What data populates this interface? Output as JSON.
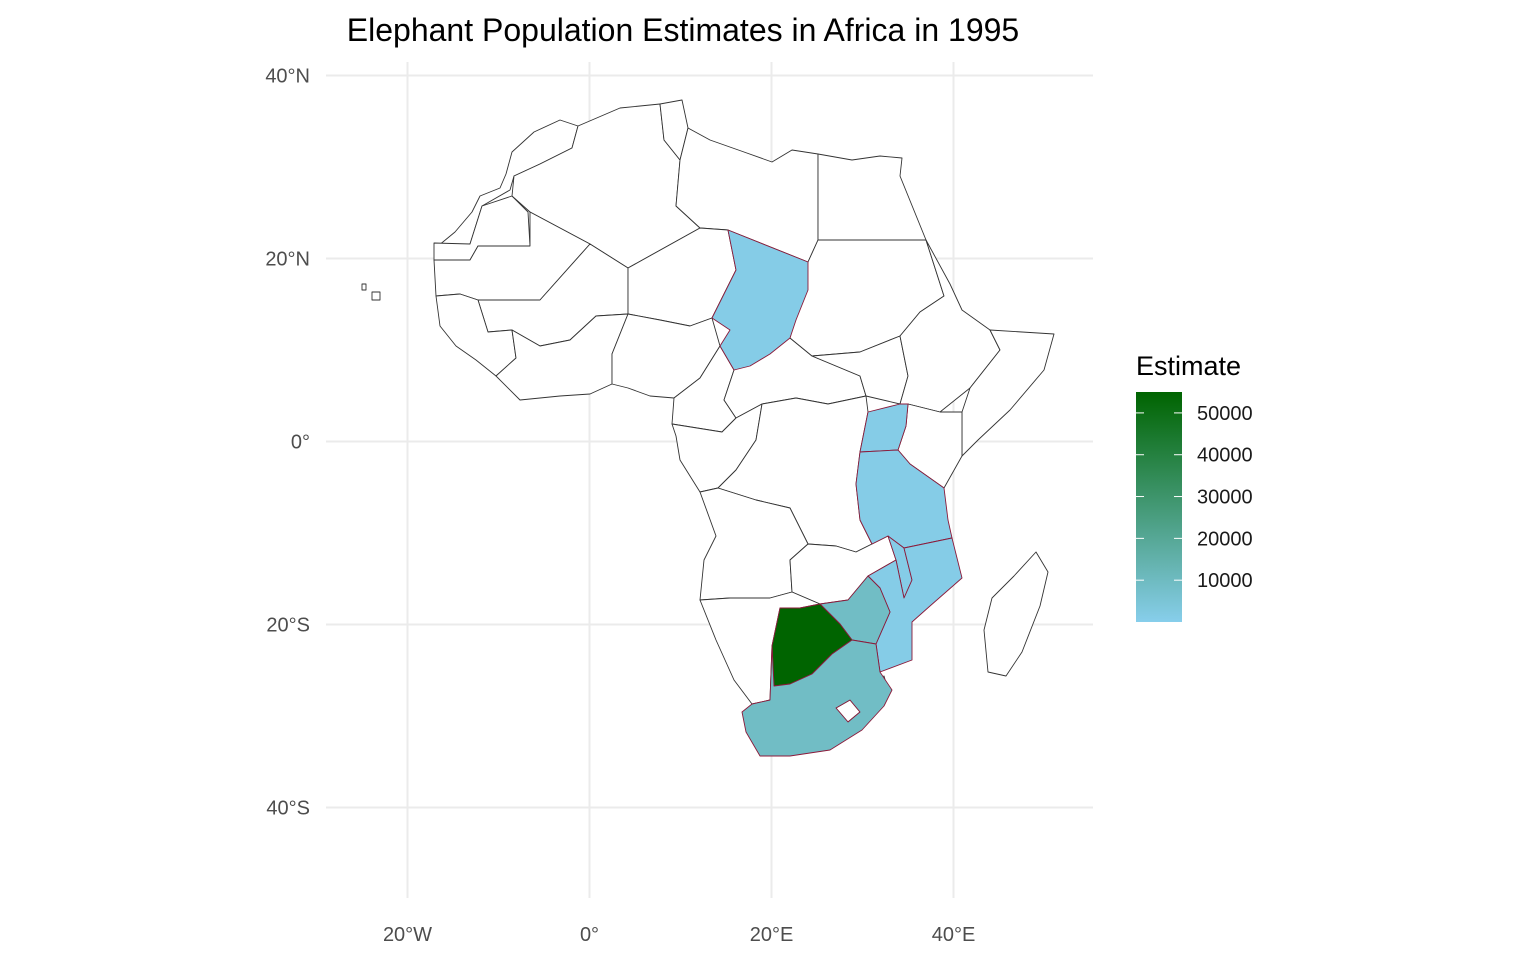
{
  "title": "Elephant Population Estimates in Africa in 1995",
  "map": {
    "region": "Africa",
    "projection": "equirectangular (lon/lat)",
    "lon_range": [
      -30,
      55
    ],
    "lat_range": [
      -48,
      42
    ],
    "grid": true,
    "default_fill": "#ffffff",
    "border_color": "#333333",
    "highlight_border_color": "#8b1a3a"
  },
  "axes": {
    "x_ticks": [
      {
        "value": -20,
        "label": "20°W"
      },
      {
        "value": 0,
        "label": "0°"
      },
      {
        "value": 20,
        "label": "20°E"
      },
      {
        "value": 40,
        "label": "40°E"
      }
    ],
    "y_ticks": [
      {
        "value": 40,
        "label": "40°N"
      },
      {
        "value": 20,
        "label": "20°N"
      },
      {
        "value": 0,
        "label": "0°"
      },
      {
        "value": -20,
        "label": "20°S"
      },
      {
        "value": -40,
        "label": "40°S"
      }
    ]
  },
  "legend": {
    "title": "Estimate",
    "position": "right",
    "low_color": "#87ceeb",
    "high_color": "#006400",
    "min": 0,
    "max": 55000,
    "breaks": [
      {
        "value": 50000,
        "label": "50000"
      },
      {
        "value": 40000,
        "label": "40000"
      },
      {
        "value": 30000,
        "label": "30000"
      },
      {
        "value": 20000,
        "label": "20000"
      },
      {
        "value": 10000,
        "label": "10000"
      }
    ]
  },
  "chart_data": {
    "type": "choropleth",
    "title": "Elephant Population Estimates in Africa in 1995",
    "value_label": "Estimate",
    "regions": [
      {
        "country": "Botswana",
        "estimate": 55000
      },
      {
        "country": "South Africa",
        "estimate": 9000
      },
      {
        "country": "Zimbabwe",
        "estimate": 9000
      },
      {
        "country": "Chad",
        "estimate": 1000
      },
      {
        "country": "Uganda",
        "estimate": 1000
      },
      {
        "country": "Tanzania",
        "estimate": 1000
      },
      {
        "country": "Mozambique",
        "estimate": 1000
      },
      {
        "country": "Malawi",
        "estimate": 1000
      }
    ]
  }
}
